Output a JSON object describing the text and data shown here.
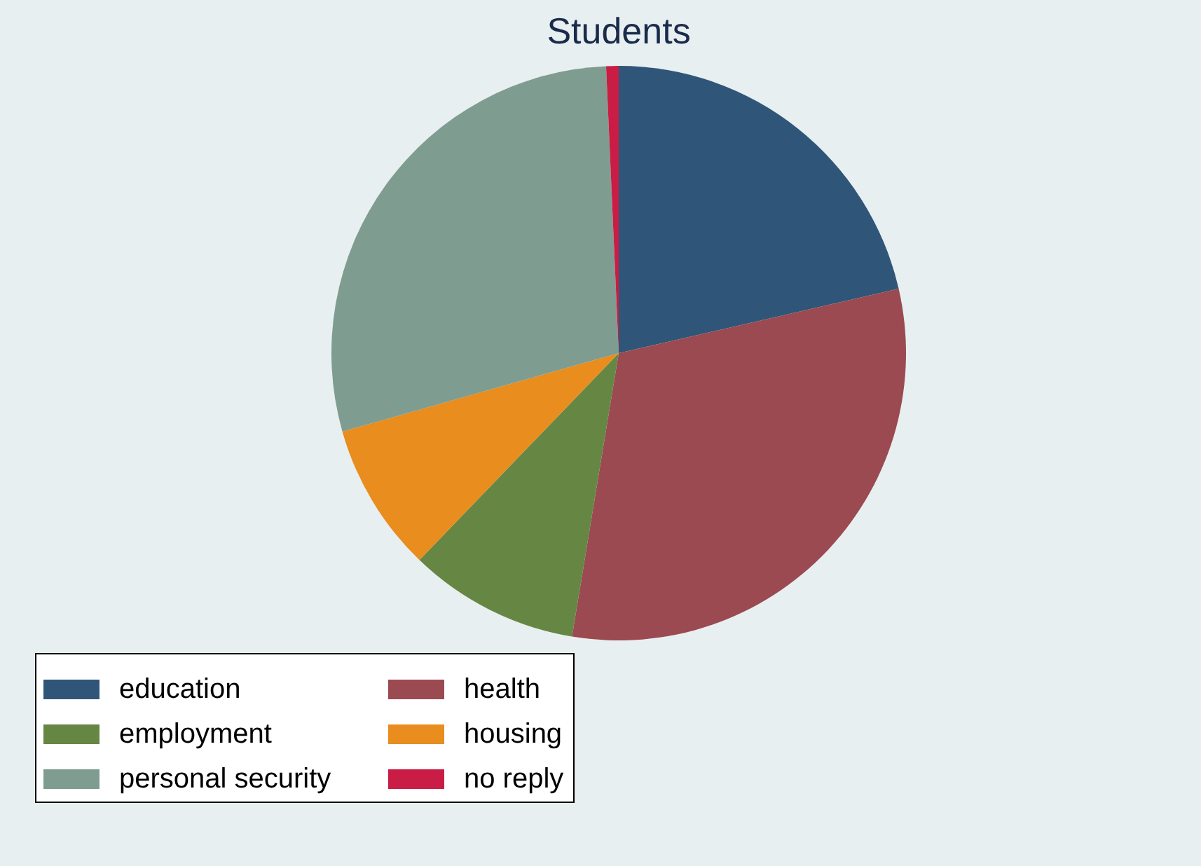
{
  "chart_data": {
    "type": "pie",
    "title": "Students",
    "categories": [
      "education",
      "health",
      "employment",
      "housing",
      "personal security",
      "no reply"
    ],
    "values": [
      21.4,
      31.2,
      9.6,
      8.4,
      28.7,
      0.7
    ],
    "colors": [
      "#2f5678",
      "#9a4a50",
      "#658743",
      "#e88d1e",
      "#7f9c90",
      "#c91d45"
    ],
    "legend": "bottom"
  }
}
